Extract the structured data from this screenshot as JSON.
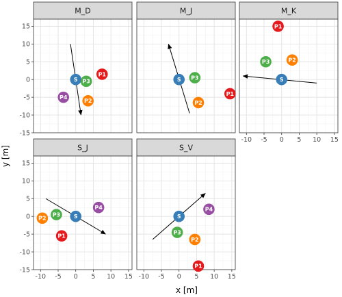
{
  "chart_data": {
    "type": "scatter",
    "xlabel": "x [m]",
    "ylabel": "y [m]",
    "xlim": [
      -12,
      16
    ],
    "ylim": [
      -15,
      17
    ],
    "xticks": [
      -10,
      -5,
      0,
      5,
      10,
      15
    ],
    "yticks": [
      -15,
      -10,
      -5,
      0,
      5,
      10,
      15
    ],
    "grid": true,
    "colors": {
      "S": "#377eb8",
      "P1": "#e41a1c",
      "P2": "#ff7f00",
      "P3": "#4daf4a",
      "P4": "#984ea3"
    },
    "panels": [
      {
        "id": "M_D",
        "title": "M_D",
        "points": [
          {
            "label": "S",
            "x": 0,
            "y": 0
          },
          {
            "label": "P1",
            "x": 7.5,
            "y": 1.5
          },
          {
            "label": "P2",
            "x": 3.5,
            "y": -6
          },
          {
            "label": "P3",
            "x": 3,
            "y": -0.5
          },
          {
            "label": "P4",
            "x": -3.5,
            "y": -5
          }
        ],
        "arrow": {
          "x0": -1.5,
          "y0": 10,
          "x1": 1.5,
          "y1": -10
        }
      },
      {
        "id": "M_J",
        "title": "M_J",
        "points": [
          {
            "label": "S",
            "x": 0,
            "y": 0
          },
          {
            "label": "P1",
            "x": 14.5,
            "y": -4
          },
          {
            "label": "P2",
            "x": 5.5,
            "y": -6.5
          },
          {
            "label": "P3",
            "x": 4.5,
            "y": 0.5
          }
        ],
        "arrow": {
          "x0": 3,
          "y0": -9.5,
          "x1": -3,
          "y1": 10
        }
      },
      {
        "id": "M_K",
        "title": "M_K",
        "points": [
          {
            "label": "S",
            "x": 0,
            "y": 0
          },
          {
            "label": "P1",
            "x": -1,
            "y": 15
          },
          {
            "label": "P2",
            "x": 3,
            "y": 5.5
          },
          {
            "label": "P3",
            "x": -4.5,
            "y": 5
          }
        ],
        "arrow": {
          "x0": 10,
          "y0": -1,
          "x1": -11,
          "y1": 1
        }
      },
      {
        "id": "S_J",
        "title": "S_J",
        "points": [
          {
            "label": "S",
            "x": 0,
            "y": 0
          },
          {
            "label": "P1",
            "x": -4,
            "y": -5.5
          },
          {
            "label": "P2",
            "x": -9.5,
            "y": -0.5
          },
          {
            "label": "P3",
            "x": -5.5,
            "y": 0.5
          },
          {
            "label": "P4",
            "x": 6.5,
            "y": 2.5
          }
        ],
        "arrow": {
          "x0": -8.5,
          "y0": 5,
          "x1": 8.5,
          "y1": -5
        }
      },
      {
        "id": "S_V",
        "title": "S_V",
        "points": [
          {
            "label": "S",
            "x": 0,
            "y": 0
          },
          {
            "label": "P1",
            "x": 5.5,
            "y": -14
          },
          {
            "label": "P2",
            "x": 4.5,
            "y": -6.5
          },
          {
            "label": "P3",
            "x": -0.5,
            "y": -4.5
          },
          {
            "label": "P4",
            "x": 8.5,
            "y": 2
          }
        ],
        "arrow": {
          "x0": -7.5,
          "y0": -6.5,
          "x1": 7.5,
          "y1": 6.5
        }
      }
    ]
  }
}
